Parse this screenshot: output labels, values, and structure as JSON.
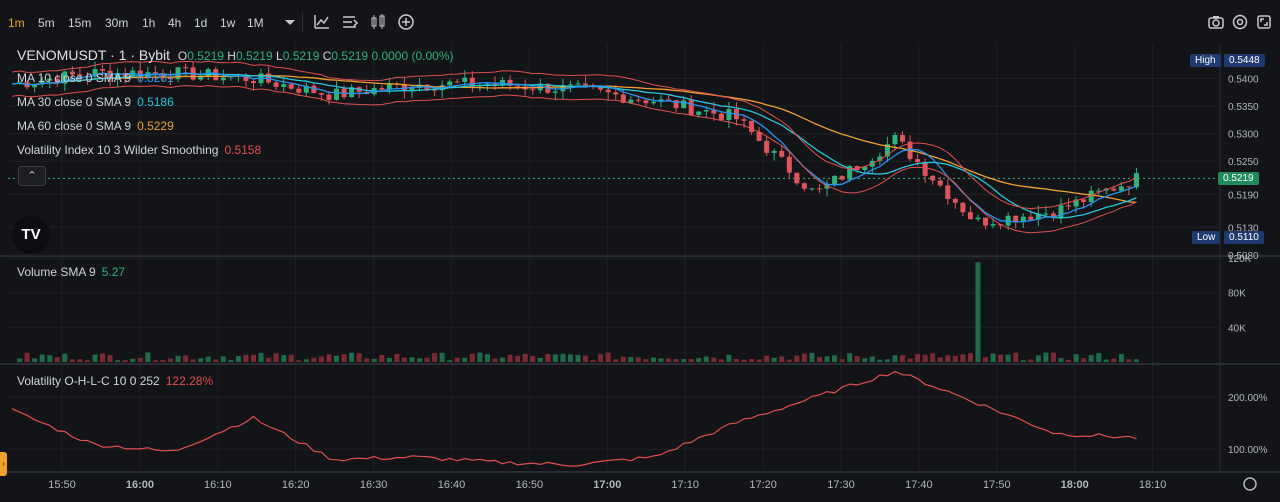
{
  "toolbar": {
    "timeframes": [
      "1m",
      "5m",
      "15m",
      "30m",
      "1h",
      "4h",
      "1d",
      "1w",
      "1M"
    ],
    "active_timeframe": "1m",
    "icons": [
      "chevron-down-icon",
      "indicators-chart-icon",
      "bar-style-icon",
      "candles-icon",
      "add-icon",
      "camera-icon",
      "settings-icon",
      "fullscreen-icon"
    ]
  },
  "symbol": {
    "title": "VENOMUSDT · 1 · Bybit",
    "o_label": "O",
    "o": "0.5219",
    "h_label": "H",
    "h": "0.5219",
    "l_label": "L",
    "l": "0.5219",
    "c_label": "C",
    "c": "0.5219",
    "change": "0.0000 (0.00%)"
  },
  "indicators": [
    {
      "label": "MA 10 close 0 SMA 9",
      "value": "0.5201",
      "color": "#2196f3"
    },
    {
      "label": "MA 30 close 0 SMA 9",
      "value": "0.5186",
      "color": "#26c6da"
    },
    {
      "label": "MA 60 close 0 SMA 9",
      "value": "0.5229",
      "color": "#f0a030"
    },
    {
      "label": "Volatility Index 10 3 Wilder Smoothing",
      "value": "0.5158",
      "color": "#e05050"
    }
  ],
  "volume_legend": {
    "label": "Volume SMA 9",
    "value": "5.27",
    "color": "#2fb37a"
  },
  "volatility_legend": {
    "label": "Volatility O-H-L-C 10 0 252",
    "value": "122.28%",
    "color": "#e05050"
  },
  "price_axis": {
    "ticks": [
      "0.5400",
      "0.5350",
      "0.5300",
      "0.5250",
      "0.5190",
      "0.5130",
      "0.5080"
    ],
    "high_label": "High",
    "high": "0.5448",
    "low_label": "Low",
    "low": "0.5110",
    "last": "0.5219"
  },
  "volume_axis": {
    "ticks": [
      "120K",
      "80K",
      "40K"
    ]
  },
  "volatility_axis": {
    "ticks": [
      "200.00%",
      "100.00%"
    ]
  },
  "time_axis": {
    "ticks": [
      "15:50",
      "16:00",
      "16:10",
      "16:20",
      "16:30",
      "16:40",
      "16:50",
      "17:00",
      "17:10",
      "17:20",
      "17:30",
      "17:40",
      "17:50",
      "18:00",
      "18:10"
    ],
    "bold": [
      "16:00",
      "17:00",
      "18:00"
    ]
  },
  "logo_text": "TV",
  "colors": {
    "up": "#2fb37a",
    "down": "#e0545b",
    "vol_up": "#1f6b4c",
    "vol_down": "#7a2a30",
    "bg": "#131417"
  },
  "chart_data": {
    "type": "line",
    "title": "VENOMUSDT · 1 · Bybit",
    "x": [
      "15:50",
      "16:00",
      "16:10",
      "16:20",
      "16:30",
      "16:40",
      "16:50",
      "17:00",
      "17:10",
      "17:20",
      "17:30",
      "17:40",
      "17:50",
      "18:00",
      "18:10"
    ],
    "series": [
      {
        "name": "VENOMUSDT",
        "values": [
          0.539,
          0.541,
          0.541,
          0.54,
          0.537,
          0.539,
          0.539,
          0.538,
          0.536,
          0.533,
          0.519,
          0.529,
          0.514,
          0.516,
          0.5219
        ]
      },
      {
        "name": "Volatility O-H-L-C 10 0 252",
        "values": [
          175,
          110,
          95,
          160,
          80,
          85,
          75,
          70,
          85,
          150,
          200,
          250,
          190,
          130,
          122.28
        ]
      }
    ],
    "price_range": [
      0.508,
      0.5448
    ],
    "volume_range": [
      0,
      120000
    ],
    "volatility_range": [
      60,
      260
    ],
    "grid": true
  }
}
